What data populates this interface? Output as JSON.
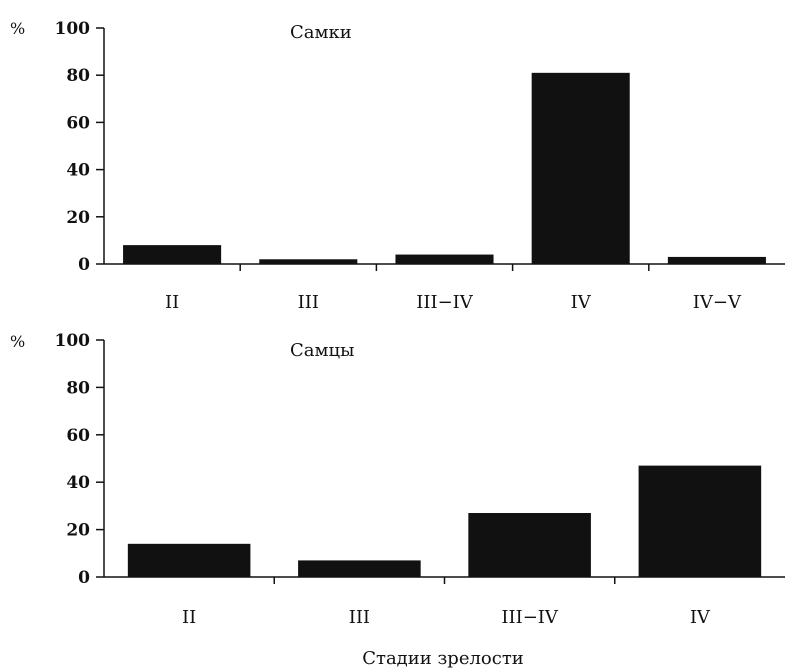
{
  "chart_data": [
    {
      "type": "bar",
      "title": "Самки",
      "ylabel": "%",
      "xlabel": "",
      "ylim": [
        0,
        100
      ],
      "yticks": [
        0,
        20,
        40,
        60,
        80,
        100
      ],
      "grid": false,
      "categories": [
        "II",
        "III",
        "III−IV",
        "IV",
        "IV−V"
      ],
      "values": [
        8,
        2,
        4,
        81,
        3
      ],
      "bar_color": "#111111"
    },
    {
      "type": "bar",
      "title": "Самцы",
      "ylabel": "%",
      "xlabel": "Стадии зрелости",
      "ylim": [
        0,
        100
      ],
      "yticks": [
        0,
        20,
        40,
        60,
        80,
        100
      ],
      "grid": false,
      "categories": [
        "II",
        "III",
        "III−IV",
        "IV"
      ],
      "values": [
        14,
        7,
        27,
        47
      ],
      "bar_color": "#111111"
    }
  ]
}
